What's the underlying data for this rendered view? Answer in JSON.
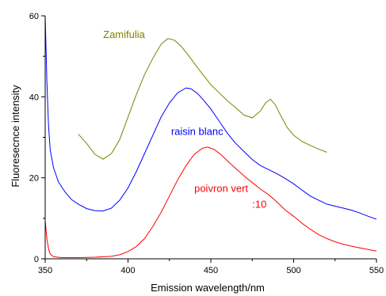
{
  "chart_data": {
    "type": "line",
    "title": "",
    "xlabel": "Emission wavelength/nm",
    "ylabel": "Fluoresecnce intensity",
    "xlim": [
      350,
      550
    ],
    "ylim": [
      0,
      60
    ],
    "x_ticks": [
      350,
      400,
      450,
      500,
      550
    ],
    "y_ticks": [
      0,
      20,
      40,
      60
    ],
    "grid": false,
    "legend": "none",
    "series": [
      {
        "name": "Zamifulia",
        "color": "#808000",
        "label_at": [
          385,
          54.5
        ],
        "points": [
          [
            370,
            30.8
          ],
          [
            375,
            28.5
          ],
          [
            380,
            25.8
          ],
          [
            385,
            24.6
          ],
          [
            390,
            26.0
          ],
          [
            395,
            29.5
          ],
          [
            400,
            35.0
          ],
          [
            405,
            40.5
          ],
          [
            410,
            45.5
          ],
          [
            415,
            49.5
          ],
          [
            420,
            53.0
          ],
          [
            424,
            54.4
          ],
          [
            428,
            54.0
          ],
          [
            432,
            52.5
          ],
          [
            436,
            50.5
          ],
          [
            440,
            48.3
          ],
          [
            445,
            45.6
          ],
          [
            450,
            43.0
          ],
          [
            455,
            41.0
          ],
          [
            460,
            39.0
          ],
          [
            465,
            37.3
          ],
          [
            470,
            35.5
          ],
          [
            475,
            34.8
          ],
          [
            480,
            36.5
          ],
          [
            483,
            38.5
          ],
          [
            486,
            39.4
          ],
          [
            489,
            38.0
          ],
          [
            492,
            35.5
          ],
          [
            496,
            32.5
          ],
          [
            500,
            30.5
          ],
          [
            505,
            29.0
          ],
          [
            510,
            28.0
          ],
          [
            515,
            27.1
          ],
          [
            520,
            26.3
          ]
        ]
      },
      {
        "name": "raisin blanc",
        "color": "#0000ff",
        "label_at": [
          426,
          30.6
        ],
        "points": [
          [
            350,
            60.0
          ],
          [
            351,
            44.0
          ],
          [
            352,
            33.0
          ],
          [
            353,
            27.0
          ],
          [
            355,
            22.5
          ],
          [
            358,
            19.0
          ],
          [
            362,
            16.5
          ],
          [
            366,
            14.6
          ],
          [
            370,
            13.5
          ],
          [
            375,
            12.4
          ],
          [
            380,
            11.9
          ],
          [
            385,
            11.8
          ],
          [
            390,
            12.5
          ],
          [
            395,
            14.5
          ],
          [
            400,
            17.5
          ],
          [
            405,
            21.5
          ],
          [
            410,
            26.0
          ],
          [
            415,
            30.5
          ],
          [
            420,
            35.0
          ],
          [
            425,
            38.5
          ],
          [
            430,
            41.0
          ],
          [
            435,
            42.2
          ],
          [
            438,
            42.0
          ],
          [
            442,
            40.8
          ],
          [
            446,
            39.0
          ],
          [
            450,
            37.0
          ],
          [
            455,
            34.0
          ],
          [
            460,
            31.0
          ],
          [
            465,
            28.5
          ],
          [
            470,
            26.5
          ],
          [
            475,
            24.5
          ],
          [
            480,
            23.0
          ],
          [
            485,
            22.0
          ],
          [
            490,
            21.0
          ],
          [
            495,
            19.8
          ],
          [
            500,
            18.5
          ],
          [
            505,
            17.0
          ],
          [
            510,
            15.5
          ],
          [
            515,
            14.5
          ],
          [
            520,
            13.5
          ],
          [
            525,
            13.0
          ],
          [
            530,
            12.5
          ],
          [
            535,
            12.0
          ],
          [
            540,
            11.3
          ],
          [
            545,
            10.5
          ],
          [
            550,
            9.8
          ]
        ]
      },
      {
        "name": "poivron vert",
        "color": "#ff0000",
        "label_at": [
          440,
          16.5
        ],
        "points": [
          [
            350,
            9.5
          ],
          [
            351,
            5.0
          ],
          [
            352,
            2.5
          ],
          [
            353,
            1.2
          ],
          [
            355,
            0.5
          ],
          [
            360,
            0.3
          ],
          [
            370,
            0.3
          ],
          [
            380,
            0.4
          ],
          [
            390,
            0.6
          ],
          [
            395,
            1.0
          ],
          [
            400,
            1.8
          ],
          [
            405,
            3.0
          ],
          [
            410,
            5.0
          ],
          [
            415,
            8.0
          ],
          [
            420,
            11.5
          ],
          [
            425,
            15.5
          ],
          [
            430,
            19.5
          ],
          [
            435,
            23.0
          ],
          [
            440,
            25.8
          ],
          [
            445,
            27.3
          ],
          [
            448,
            27.6
          ],
          [
            452,
            27.0
          ],
          [
            456,
            25.8
          ],
          [
            460,
            24.2
          ],
          [
            465,
            22.3
          ],
          [
            470,
            20.5
          ],
          [
            475,
            18.8
          ],
          [
            480,
            17.2
          ],
          [
            485,
            15.8
          ],
          [
            490,
            14.0
          ],
          [
            495,
            12.0
          ],
          [
            500,
            10.5
          ],
          [
            505,
            8.8
          ],
          [
            510,
            7.3
          ],
          [
            515,
            6.0
          ],
          [
            520,
            5.0
          ],
          [
            525,
            4.2
          ],
          [
            530,
            3.6
          ],
          [
            535,
            3.1
          ],
          [
            540,
            2.7
          ],
          [
            545,
            2.3
          ],
          [
            550,
            1.9
          ]
        ]
      }
    ],
    "annotations": [
      {
        "text": ":10",
        "color": "#ff0000",
        "at": [
          475,
          12.6
        ]
      }
    ]
  }
}
